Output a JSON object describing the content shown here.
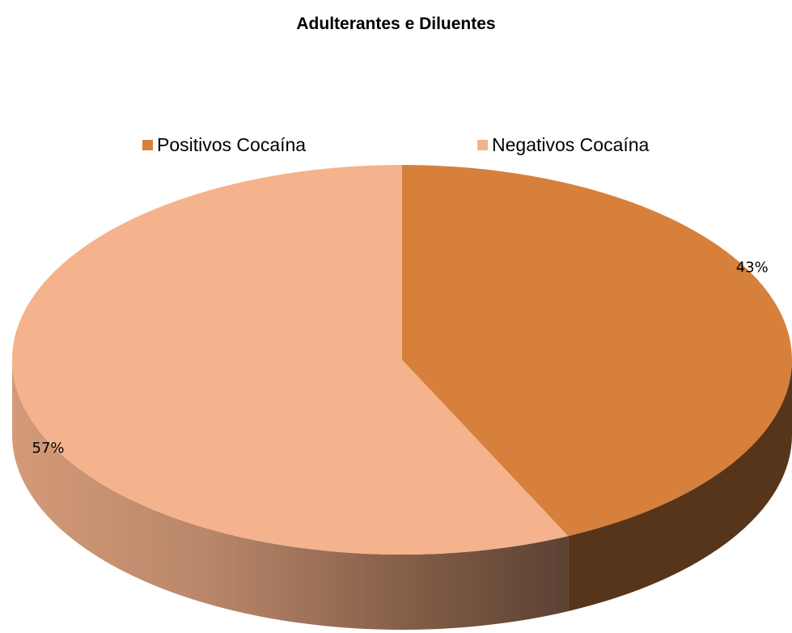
{
  "chart_data": {
    "type": "pie",
    "title": "Adulterantes e Diluentes",
    "slices": [
      {
        "label": "Positivos Cocaína",
        "value": 43,
        "display": "43%",
        "color": "#D6803C",
        "side_color": "#57351A"
      },
      {
        "label": "Negativos Cocaína",
        "value": 57,
        "display": "57%",
        "color": "#F4B28D",
        "side_color": "#B98C6F"
      }
    ],
    "legend_position": "top",
    "style": "3d"
  }
}
